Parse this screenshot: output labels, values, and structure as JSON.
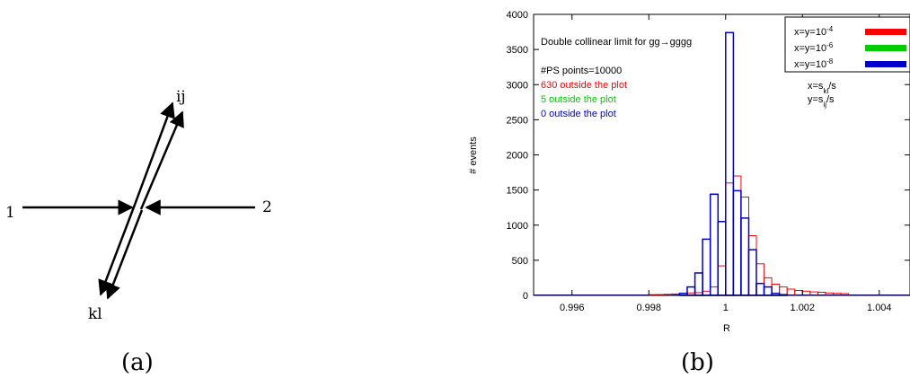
{
  "panel_a": {
    "caption": "(a)",
    "labels": {
      "left": "1",
      "right": "2",
      "up": "ij",
      "down": "kl"
    }
  },
  "panel_b": {
    "caption": "(b)",
    "text_box": {
      "line1": "Double collinear limit for gg→gggg",
      "line2": "#PS points=10000",
      "line3": "630 outside the plot",
      "line4": "5  outside the plot",
      "line5": "0 outside the plot"
    },
    "side_note": {
      "x_def": "x=s_kl/s",
      "y_def": "y=s_ij/s"
    }
  },
  "colors": {
    "red": "#ff0000",
    "green": "#00cc00",
    "blue": "#0000cc"
  },
  "chart_data": {
    "type": "bar",
    "title": "",
    "xlabel": "R",
    "ylabel": "# events",
    "xlim": [
      0.995,
      1.0048
    ],
    "ylim": [
      0,
      4000
    ],
    "grid": false,
    "legend_position": "top-right",
    "x_ticks": [
      "0.996",
      "0.998",
      "1",
      "1.002",
      "1.004"
    ],
    "y_ticks": [
      "0",
      "500",
      "1000",
      "1500",
      "2000",
      "2500",
      "3000",
      "3500",
      "4000"
    ],
    "bin_width": 0.0002,
    "series": [
      {
        "name": "x=y=10^-4",
        "color": "#ff0000",
        "bins": [
          {
            "x0": 0.9994,
            "v": 60
          },
          {
            "x0": 0.9996,
            "v": 120
          },
          {
            "x0": 0.9998,
            "v": 420
          },
          {
            "x0": 1.0,
            "v": 1600
          },
          {
            "x0": 1.0002,
            "v": 1700
          },
          {
            "x0": 1.0004,
            "v": 1400
          },
          {
            "x0": 1.0006,
            "v": 850
          },
          {
            "x0": 1.0008,
            "v": 450
          },
          {
            "x0": 1.001,
            "v": 250
          },
          {
            "x0": 1.0012,
            "v": 160
          },
          {
            "x0": 1.0014,
            "v": 120
          },
          {
            "x0": 1.0016,
            "v": 90
          },
          {
            "x0": 1.0018,
            "v": 70
          },
          {
            "x0": 1.002,
            "v": 60
          },
          {
            "x0": 1.0022,
            "v": 50
          },
          {
            "x0": 1.0024,
            "v": 45
          },
          {
            "x0": 1.0026,
            "v": 35
          },
          {
            "x0": 1.0028,
            "v": 30
          },
          {
            "x0": 1.003,
            "v": 25
          },
          {
            "x0": 0.9992,
            "v": 40
          },
          {
            "x0": 0.999,
            "v": 35
          },
          {
            "x0": 0.9988,
            "v": 25
          },
          {
            "x0": 0.9986,
            "v": 20
          },
          {
            "x0": 0.9984,
            "v": 15
          },
          {
            "x0": 0.9982,
            "v": 12
          },
          {
            "x0": 0.998,
            "v": 10
          }
        ]
      },
      {
        "name": "x=y=10^-6",
        "color": "#00cc00",
        "bins": []
      },
      {
        "name": "x=y=10^-8",
        "color": "#0000cc",
        "bins": [
          {
            "x0": 0.9988,
            "v": 30
          },
          {
            "x0": 0.999,
            "v": 120
          },
          {
            "x0": 0.9992,
            "v": 320
          },
          {
            "x0": 0.9994,
            "v": 800
          },
          {
            "x0": 0.9996,
            "v": 1440
          },
          {
            "x0": 0.9998,
            "v": 1050
          },
          {
            "x0": 1.0,
            "v": 3740
          },
          {
            "x0": 1.0002,
            "v": 1490
          },
          {
            "x0": 1.0004,
            "v": 1100
          },
          {
            "x0": 1.0006,
            "v": 650
          },
          {
            "x0": 1.0008,
            "v": 170
          },
          {
            "x0": 1.001,
            "v": 120
          },
          {
            "x0": 1.0012,
            "v": 30
          },
          {
            "x0": 1.0014,
            "v": 10
          }
        ]
      }
    ]
  }
}
